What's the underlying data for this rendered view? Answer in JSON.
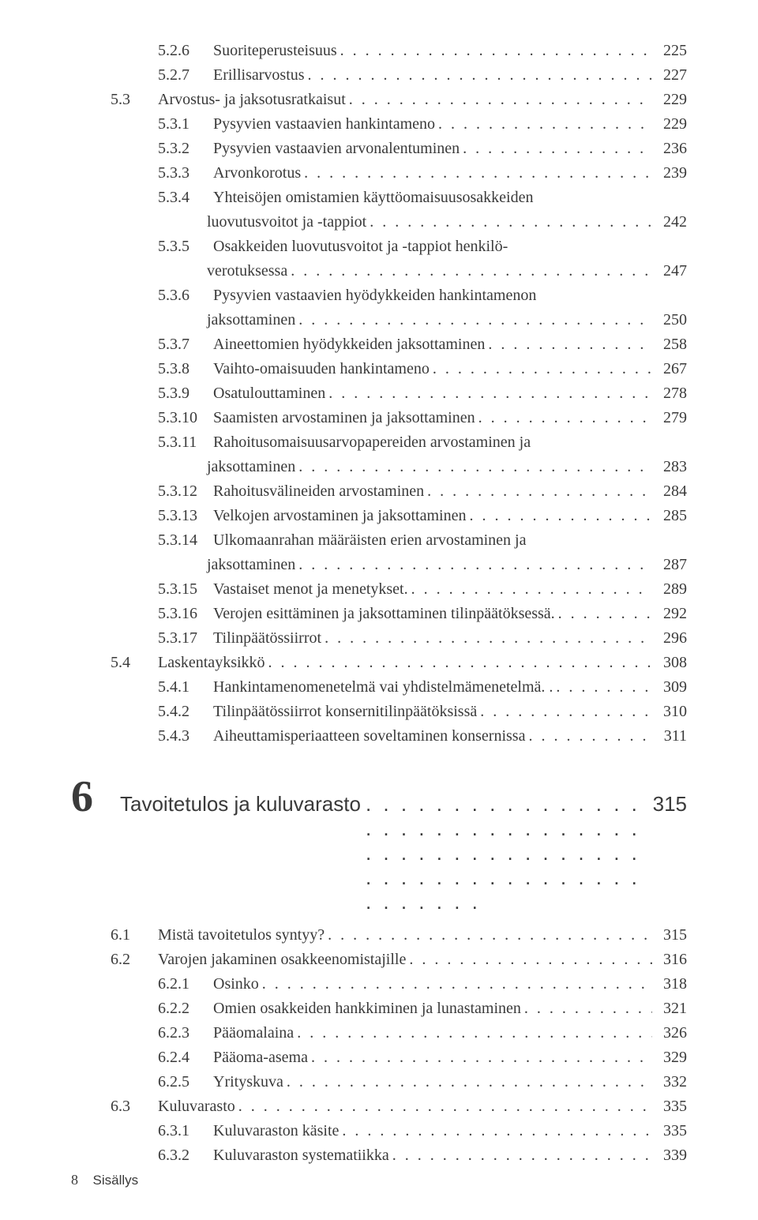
{
  "dots": ". . . . . . . . . . . . . . . . . . . . . . . . . . . . . . . . . . . . . . . . . . . . . . . . . . . . . . . . . . . . . . . . . . . . . . .",
  "block1": [
    {
      "level": 1,
      "num": "5.2.6",
      "text": "Suoriteperusteisuus",
      "page": "225",
      "type": "normal"
    },
    {
      "level": 1,
      "num": "5.2.7",
      "text": "Erillisarvostus",
      "page": "227",
      "type": "normal"
    },
    {
      "level": 0,
      "num": "5.3",
      "text": "Arvostus- ja jaksotusratkaisut",
      "page": "229",
      "type": "normal"
    },
    {
      "level": 1,
      "num": "5.3.1",
      "text": "Pysyvien vastaavien hankintameno",
      "page": "229",
      "type": "normal"
    },
    {
      "level": 1,
      "num": "5.3.2",
      "text": "Pysyvien vastaavien arvonalentuminen",
      "page": "236",
      "type": "normal"
    },
    {
      "level": 1,
      "num": "5.3.3",
      "text": "Arvonkorotus",
      "page": "239",
      "type": "normal"
    },
    {
      "level": 1,
      "num": "5.3.4",
      "text": "Yhteisöjen omistamien käyttöomaisuusosakkeiden",
      "type": "nowrap"
    },
    {
      "level": "cont",
      "text": "luovutusvoitot ja -tappiot",
      "page": "242",
      "type": "normal"
    },
    {
      "level": 1,
      "num": "5.3.5",
      "text": "Osakkeiden luovutusvoitot ja -tappiot henkilö-",
      "type": "nowrap"
    },
    {
      "level": "cont",
      "text": "verotuksessa",
      "page": "247",
      "type": "normal"
    },
    {
      "level": 1,
      "num": "5.3.6",
      "text": "Pysyvien vastaavien hyödykkeiden hankintamenon",
      "type": "nowrap"
    },
    {
      "level": "cont",
      "text": "jaksottaminen",
      "page": "250",
      "type": "normal"
    },
    {
      "level": 1,
      "num": "5.3.7",
      "text": "Aineettomien hyödykkeiden jaksottaminen",
      "page": "258",
      "type": "normal"
    },
    {
      "level": 1,
      "num": "5.3.8",
      "text": "Vaihto-omaisuuden hankintameno",
      "page": "267",
      "type": "normal"
    },
    {
      "level": 1,
      "num": "5.3.9",
      "text": "Osatulouttaminen",
      "page": "278",
      "type": "normal"
    },
    {
      "level": 1,
      "num": "5.3.10",
      "text": "Saamisten arvostaminen ja jaksottaminen",
      "page": "279",
      "type": "normal"
    },
    {
      "level": 1,
      "num": "5.3.11",
      "text": "Rahoitusomaisuusarvopapereiden arvostaminen ja",
      "type": "nowrap"
    },
    {
      "level": "cont",
      "text": "jaksottaminen",
      "page": "283",
      "type": "normal"
    },
    {
      "level": 1,
      "num": "5.3.12",
      "text": "Rahoitusvälineiden arvostaminen",
      "page": "284",
      "type": "normal"
    },
    {
      "level": 1,
      "num": "5.3.13",
      "text": "Velkojen arvostaminen ja jaksottaminen",
      "page": "285",
      "type": "normal"
    },
    {
      "level": 1,
      "num": "5.3.14",
      "text": "Ulkomaanrahan määräisten erien arvostaminen ja",
      "type": "nowrap"
    },
    {
      "level": "cont",
      "text": "jaksottaminen",
      "page": "287",
      "type": "normal"
    },
    {
      "level": 1,
      "num": "5.3.15",
      "text": "Vastaiset menot ja menetykset.",
      "page": "289",
      "type": "normal"
    },
    {
      "level": 1,
      "num": "5.3.16",
      "text": "Verojen esittäminen ja jaksottaminen tilinpäätöksessä.",
      "page": "292",
      "type": "normal"
    },
    {
      "level": 1,
      "num": "5.3.17",
      "text": "Tilinpäätössiirrot",
      "page": "296",
      "type": "normal"
    },
    {
      "level": 0,
      "num": "5.4",
      "text": "Laskentayksikkö",
      "page": "308",
      "type": "normal"
    },
    {
      "level": 1,
      "num": "5.4.1",
      "text": "Hankintamenomenetelmä vai yhdistelmämenetelmä. .",
      "page": "309",
      "type": "normal"
    },
    {
      "level": 1,
      "num": "5.4.2",
      "text": "Tilinpäätössiirrot konsernitilinpäätöksissä",
      "page": "310",
      "type": "normal"
    },
    {
      "level": 1,
      "num": "5.4.3",
      "text": "Aiheuttamisperiaatteen soveltaminen konsernissa",
      "page": "311",
      "type": "normal"
    }
  ],
  "chapter": {
    "num": "6",
    "title": "Tavoitetulos ja kuluvarasto",
    "page": "315"
  },
  "block2": [
    {
      "level": 0,
      "num": "6.1",
      "text": "Mistä tavoitetulos syntyy?",
      "page": "315",
      "type": "normal"
    },
    {
      "level": 0,
      "num": "6.2",
      "text": "Varojen jakaminen osakkeenomistajille",
      "page": "316",
      "type": "normal"
    },
    {
      "level": 1,
      "num": "6.2.1",
      "text": "Osinko",
      "page": "318",
      "type": "normal"
    },
    {
      "level": 1,
      "num": "6.2.2",
      "text": "Omien osakkeiden hankkiminen ja lunastaminen",
      "page": "321",
      "type": "normal"
    },
    {
      "level": 1,
      "num": "6.2.3",
      "text": "Pääomalaina",
      "page": "326",
      "type": "normal"
    },
    {
      "level": 1,
      "num": "6.2.4",
      "text": "Pääoma-asema",
      "page": "329",
      "type": "normal"
    },
    {
      "level": 1,
      "num": "6.2.5",
      "text": "Yrityskuva",
      "page": "332",
      "type": "normal"
    },
    {
      "level": 0,
      "num": "6.3",
      "text": "Kuluvarasto",
      "page": "335",
      "type": "normal"
    },
    {
      "level": 1,
      "num": "6.3.1",
      "text": "Kuluvaraston käsite",
      "page": "335",
      "type": "normal"
    },
    {
      "level": 1,
      "num": "6.3.2",
      "text": "Kuluvaraston systematiikka",
      "page": "339",
      "type": "normal"
    }
  ],
  "footer": {
    "num": "8",
    "label": "Sisällys"
  }
}
